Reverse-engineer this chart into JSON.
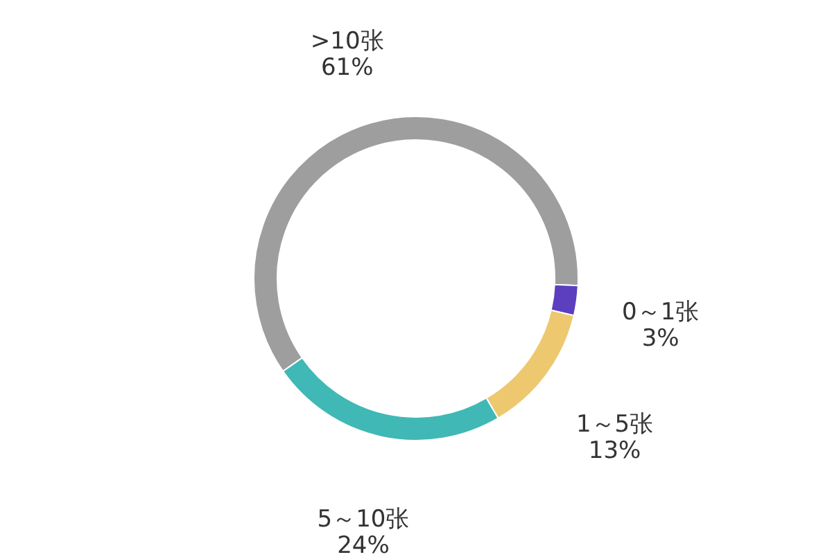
{
  "chart_data": {
    "type": "donut",
    "categories": [
      ">10张",
      "0～1张",
      "1～5张",
      "5～10张"
    ],
    "values": [
      61,
      3,
      13,
      24
    ],
    "colors": [
      "#9e9e9e",
      "#5b3fbf",
      "#edc86f",
      "#40b8b5"
    ],
    "value_labels": [
      "61%",
      "3%",
      "13%",
      "24%"
    ]
  }
}
